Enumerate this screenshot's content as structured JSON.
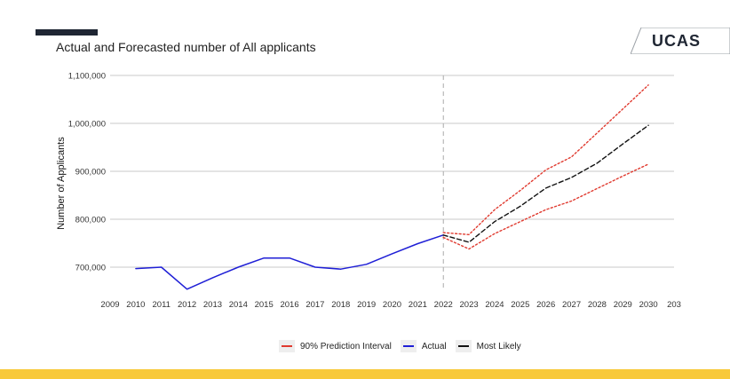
{
  "slide": {
    "title": "Actual and Forecasted number of All applicants",
    "logo_text": "UCAS",
    "accent_bar_color": "#1f2633",
    "bottom_band_color": "#f8c93a"
  },
  "chart_data": {
    "type": "line",
    "title": "",
    "xlabel": "",
    "ylabel": "Number of Applicants",
    "xlim": [
      2009,
      2031
    ],
    "ylim": [
      650000,
      1100000
    ],
    "x_ticks": [
      "2009",
      "2010",
      "2011",
      "2012",
      "2013",
      "2014",
      "2015",
      "2016",
      "2017",
      "2018",
      "2019",
      "2020",
      "2021",
      "2022",
      "2023",
      "2024",
      "2025",
      "2026",
      "2027",
      "2028",
      "2029",
      "2030",
      "203"
    ],
    "y_ticks": [
      "700,000",
      "800,000",
      "900,000",
      "1,000,000",
      "1,100,000"
    ],
    "y_tick_values": [
      700000,
      800000,
      900000,
      1000000,
      1100000
    ],
    "grid": "horizontal",
    "vertical_reference_x": 2022,
    "legend_position": "bottom",
    "series": [
      {
        "name": "Actual",
        "color": "#1f1fd6",
        "style": "solid",
        "x": [
          2010,
          2011,
          2012,
          2013,
          2014,
          2015,
          2016,
          2017,
          2018,
          2019,
          2020,
          2021,
          2022
        ],
        "y": [
          697000,
          700000,
          654000,
          678000,
          700000,
          719000,
          719000,
          700000,
          696000,
          706000,
          728000,
          749000,
          767000
        ]
      },
      {
        "name": "Most Likely",
        "color": "#111111",
        "style": "dashed",
        "x": [
          2022,
          2023,
          2024,
          2025,
          2026,
          2027,
          2028,
          2029,
          2030
        ],
        "y": [
          767000,
          752000,
          795000,
          827000,
          865000,
          887000,
          917000,
          957000,
          996000
        ]
      },
      {
        "name": "90% Prediction Interval",
        "color": "#e03a2f",
        "style": "dotted",
        "x": [
          2022,
          2023,
          2024,
          2025,
          2026,
          2027,
          2028,
          2029,
          2030
        ],
        "y": [
          772000,
          768000,
          820000,
          860000,
          903000,
          930000,
          980000,
          1030000,
          1080000
        ]
      },
      {
        "name": "90% Prediction Interval",
        "color": "#e03a2f",
        "style": "dotted",
        "x": [
          2022,
          2023,
          2024,
          2025,
          2026,
          2027,
          2028,
          2029,
          2030
        ],
        "y": [
          762000,
          738000,
          770000,
          795000,
          820000,
          838000,
          864000,
          890000,
          915000
        ]
      }
    ],
    "legend": [
      {
        "label": "90% Prediction Interval",
        "color": "#e03a2f"
      },
      {
        "label": "Actual",
        "color": "#1f1fd6"
      },
      {
        "label": "Most Likely",
        "color": "#111111"
      }
    ]
  }
}
